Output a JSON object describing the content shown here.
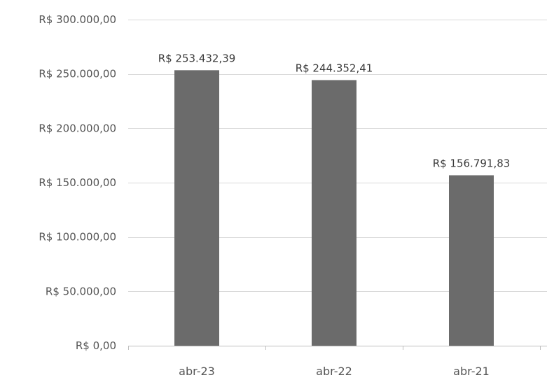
{
  "chart_data": {
    "type": "bar",
    "title": "",
    "xlabel": "",
    "ylabel": "",
    "categories": [
      "abr-23",
      "abr-22",
      "abr-21"
    ],
    "values": [
      253432.39,
      244352.41,
      156791.83
    ],
    "data_labels": [
      "R$ 253.432,39",
      "R$ 244.352,41",
      "R$ 156.791,83"
    ],
    "ylim": [
      0,
      300000
    ],
    "yticks": [
      0,
      50000,
      100000,
      150000,
      200000,
      250000,
      300000
    ],
    "ytick_labels": [
      "R$ 0,00",
      "R$ 50.000,00",
      "R$ 100.000,00",
      "R$ 150.000,00",
      "R$ 200.000,00",
      "R$ 250.000,00",
      "R$ 300.000,00"
    ],
    "grid": true,
    "legend": "none",
    "bar_color": "#6b6b6b",
    "grid_color": "#d9d9d9"
  }
}
